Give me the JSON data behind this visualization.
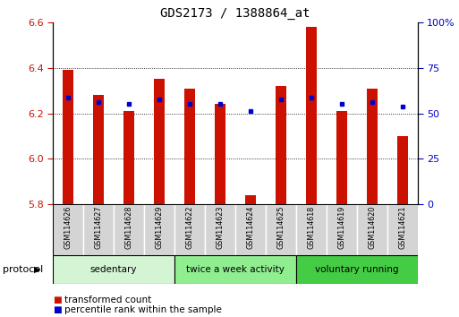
{
  "title": "GDS2173 / 1388864_at",
  "samples": [
    "GSM114626",
    "GSM114627",
    "GSM114628",
    "GSM114629",
    "GSM114622",
    "GSM114623",
    "GSM114624",
    "GSM114625",
    "GSM114618",
    "GSM114619",
    "GSM114620",
    "GSM114621"
  ],
  "red_values": [
    6.39,
    6.28,
    6.21,
    6.35,
    6.31,
    6.24,
    5.84,
    6.32,
    6.58,
    6.21,
    6.31,
    6.1
  ],
  "blue_values": [
    6.27,
    6.25,
    6.24,
    6.26,
    6.24,
    6.24,
    6.21,
    6.26,
    6.27,
    6.24,
    6.25,
    6.23
  ],
  "ylim": [
    5.8,
    6.6
  ],
  "yticks": [
    5.8,
    6.0,
    6.2,
    6.4,
    6.6
  ],
  "y2lim": [
    0,
    100
  ],
  "y2ticks": [
    0,
    25,
    50,
    75,
    100
  ],
  "y2labels": [
    "0",
    "25",
    "50",
    "75",
    "100%"
  ],
  "groups": [
    {
      "label": "sedentary",
      "start": 0,
      "end": 4,
      "color": "#d4f5d4"
    },
    {
      "label": "twice a week activity",
      "start": 4,
      "end": 8,
      "color": "#90ee90"
    },
    {
      "label": "voluntary running",
      "start": 8,
      "end": 12,
      "color": "#44cc44"
    }
  ],
  "bar_color": "#cc1100",
  "dot_color": "#0000cc",
  "bg_color": "#ffffff",
  "tick_color_left": "#cc1100",
  "tick_color_right": "#0000cc",
  "legend_items": [
    {
      "label": "transformed count",
      "color": "#cc1100"
    },
    {
      "label": "percentile rank within the sample",
      "color": "#0000cc"
    }
  ],
  "protocol_label": "protocol",
  "bar_width": 0.35
}
